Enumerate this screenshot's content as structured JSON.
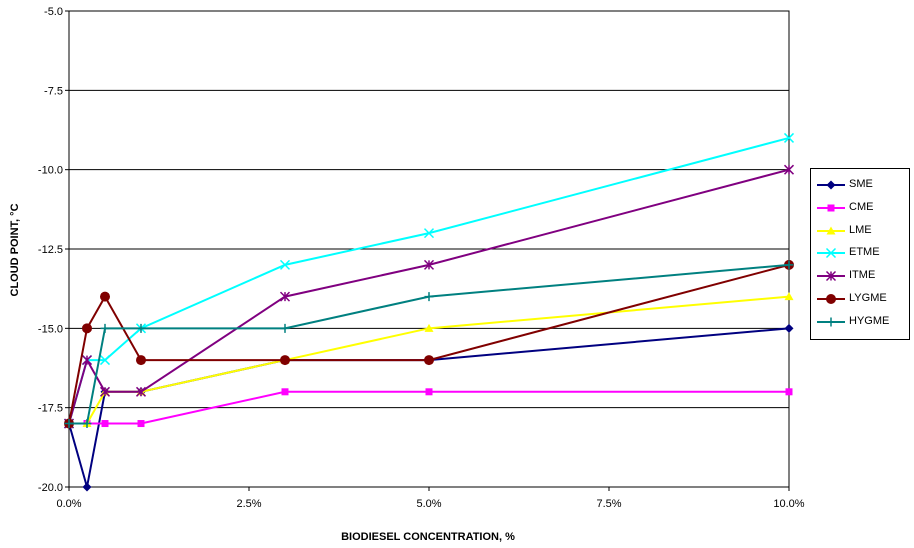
{
  "chart_data": {
    "type": "line",
    "title": "",
    "xlabel": "BIODIESEL CONCENTRATION, %",
    "ylabel": "CLOUD POINT, °C",
    "xlim": [
      0,
      10
    ],
    "ylim": [
      -20,
      -5
    ],
    "x_ticks": [
      0,
      2.5,
      5,
      7.5,
      10
    ],
    "x_tick_labels": [
      "0.0%",
      "2.5%",
      "5.0%",
      "7.5%",
      "10.0%"
    ],
    "y_ticks": [
      -5,
      -7.5,
      -10,
      -12.5,
      -15,
      -17.5,
      -20
    ],
    "y_tick_labels": [
      "-5.0",
      "-7.5",
      "-10.0",
      "-12.5",
      "-15.0",
      "-17.5",
      "-20.0"
    ],
    "grid": "horizontal",
    "legend_position": "right",
    "series": [
      {
        "name": "SME",
        "color": "#000080",
        "marker": "diamond",
        "x": [
          0,
          0.25,
          0.5,
          1,
          3,
          5,
          10
        ],
        "values": [
          -18,
          -20,
          -17,
          -17,
          -16,
          -16,
          -15
        ]
      },
      {
        "name": "CME",
        "color": "#ff00ff",
        "marker": "square",
        "x": [
          0,
          0.25,
          0.5,
          1,
          3,
          5,
          10
        ],
        "values": [
          -18,
          -18,
          -18,
          -18,
          -17,
          -17,
          -17
        ]
      },
      {
        "name": "LME",
        "color": "#ffff00",
        "marker": "triangle",
        "x": [
          0,
          0.25,
          0.5,
          1,
          3,
          5,
          10
        ],
        "values": [
          -18,
          -18,
          -17,
          -17,
          -16,
          -15,
          -14
        ]
      },
      {
        "name": "ETME",
        "color": "#00ffff",
        "marker": "x",
        "x": [
          0,
          0.25,
          0.5,
          1,
          3,
          5,
          10
        ],
        "values": [
          -18,
          -16,
          -16,
          -15,
          -13,
          -12,
          -9
        ]
      },
      {
        "name": "ITME",
        "color": "#800080",
        "marker": "star",
        "x": [
          0,
          0.25,
          0.5,
          1,
          3,
          5,
          10
        ],
        "values": [
          -18,
          -16,
          -17,
          -17,
          -14,
          -13,
          -10
        ]
      },
      {
        "name": "LYGME",
        "color": "#800000",
        "marker": "circle",
        "x": [
          0,
          0.25,
          0.5,
          1,
          3,
          5,
          10
        ],
        "values": [
          -18,
          -15,
          -14,
          -16,
          -16,
          -16,
          -13
        ]
      },
      {
        "name": "HYGME",
        "color": "#008080",
        "marker": "plus",
        "x": [
          0,
          0.25,
          0.5,
          1,
          3,
          5,
          10
        ],
        "values": [
          -18,
          -18,
          -15,
          -15,
          -15,
          -14,
          -13
        ]
      }
    ]
  }
}
